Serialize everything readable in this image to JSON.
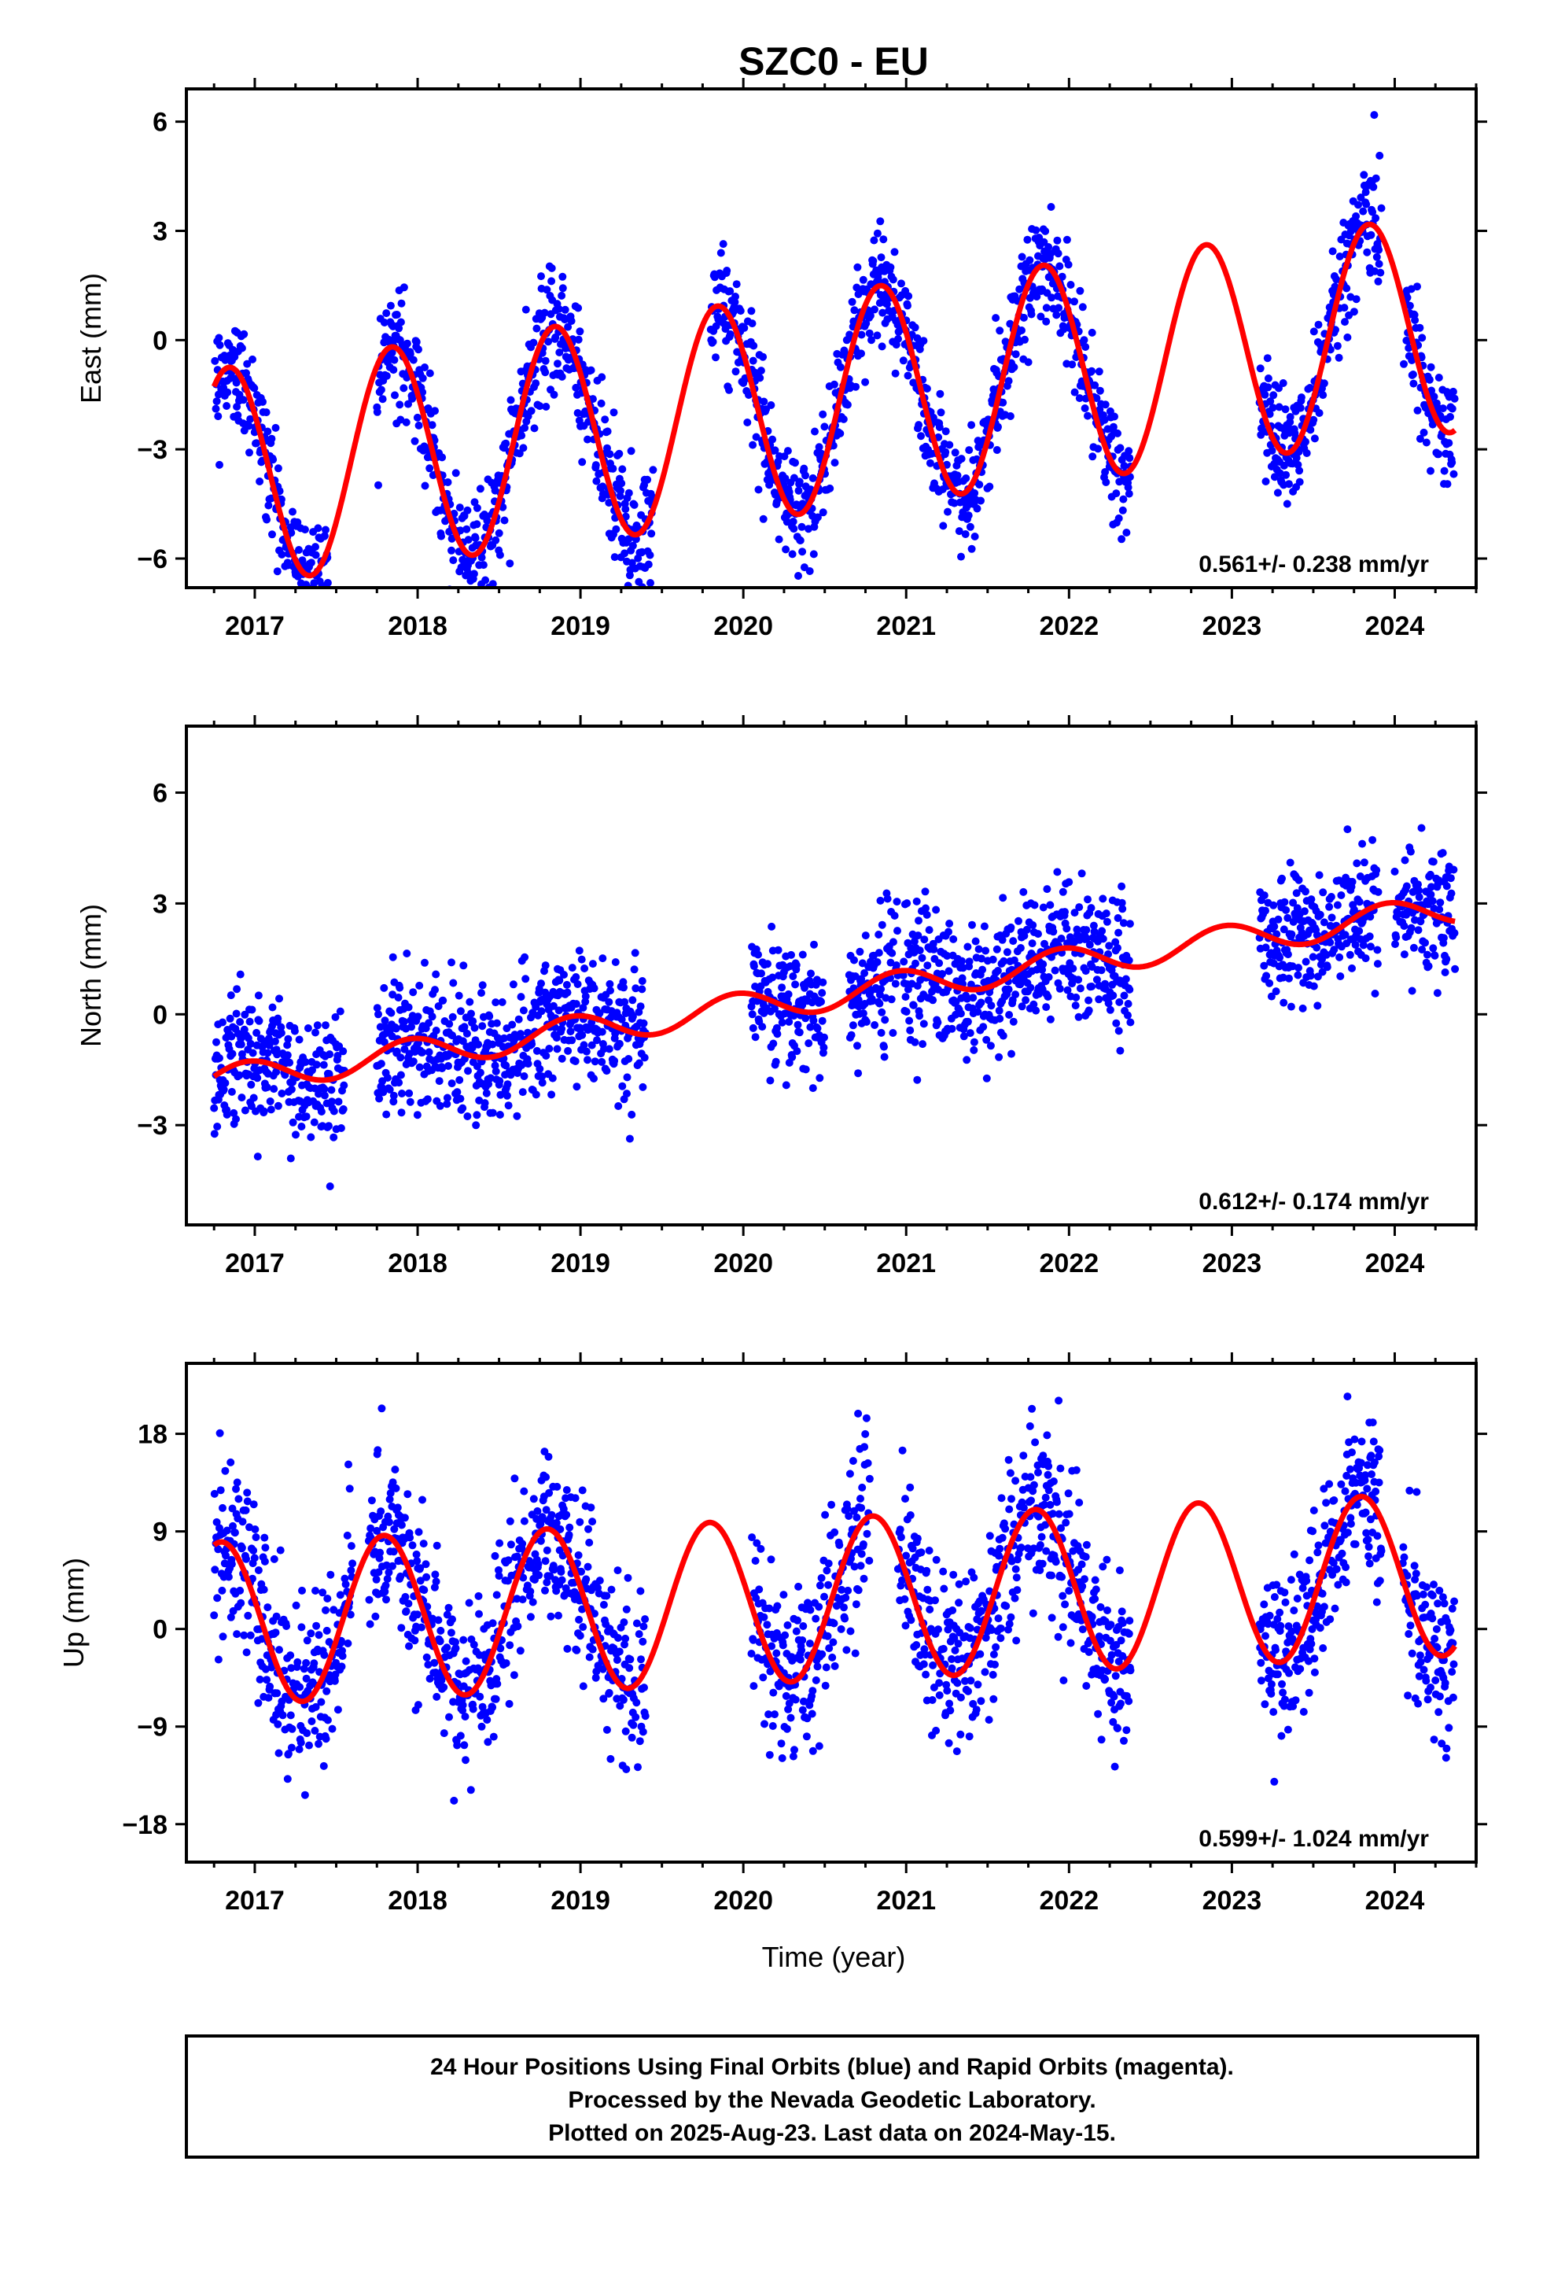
{
  "title": "SZC0 - EU",
  "xlabel": "Time (year)",
  "footer": {
    "line1": "24 Hour Positions Using Final Orbits (blue) and Rapid Orbits (magenta).",
    "line2": "Processed by the Nevada Geodetic Laboratory.",
    "line3": "Plotted on 2025-Aug-23. Last data on 2024-May-15."
  },
  "colors": {
    "observations": "#0000ff",
    "model_fit": "#ff0000",
    "axes": "#000000"
  },
  "chart_data": [
    {
      "type": "scatter",
      "panel": "east",
      "ylabel": "East (mm)",
      "rate": "0.561+/- 0.238 mm/yr",
      "xlim": [
        2016.58,
        2024.5
      ],
      "ylim": [
        -6.8,
        6.9
      ],
      "xticks": [
        2017,
        2018,
        2019,
        2020,
        2021,
        2022,
        2023,
        2024
      ],
      "yticks": [
        6,
        3,
        0,
        -3,
        -6
      ],
      "ytick_labels": [
        "6",
        "3",
        "0",
        "−3",
        "−6"
      ],
      "grid": false,
      "data_spans": [
        [
          2016.75,
          2017.45
        ],
        [
          2017.75,
          2019.45
        ],
        [
          2019.8,
          2021.55
        ],
        [
          2021.55,
          2022.38
        ],
        [
          2023.17,
          2023.92
        ],
        [
          2024.05,
          2024.37
        ]
      ],
      "series": [
        {
          "name": "Final Orbits (blue)",
          "style": "points",
          "model": {
            "t0": 2016.75,
            "y0": -3.8,
            "trend": 0.561,
            "amp": 3.0,
            "phase": 1.0,
            "noise": 0.8
          }
        },
        {
          "name": "model fit",
          "style": "line",
          "model": {
            "t0": 2016.75,
            "y0": -3.8,
            "trend": 0.561,
            "amp": 3.0,
            "phase": 1.0
          }
        }
      ]
    },
    {
      "type": "scatter",
      "panel": "north",
      "ylabel": "North (mm)",
      "rate": "0.612+/- 0.174 mm/yr",
      "xlim": [
        2016.58,
        2024.5
      ],
      "ylim": [
        -5.7,
        7.8
      ],
      "xticks": [
        2017,
        2018,
        2019,
        2020,
        2021,
        2022,
        2023,
        2024
      ],
      "yticks": [
        6,
        3,
        0,
        -3
      ],
      "ytick_labels": [
        "6",
        "3",
        "0",
        "−3"
      ],
      "grid": false,
      "data_spans": [
        [
          2016.75,
          2017.55
        ],
        [
          2017.75,
          2019.4
        ],
        [
          2020.05,
          2020.5
        ],
        [
          2020.65,
          2020.95
        ],
        [
          2020.98,
          2022.38
        ],
        [
          2023.17,
          2023.9
        ],
        [
          2024.0,
          2024.37
        ]
      ],
      "series": [
        {
          "name": "Final Orbits (blue)",
          "style": "points",
          "model": {
            "t0": 2016.75,
            "y0": -1.8,
            "trend": 0.612,
            "amp": 0.4,
            "phase": 0.3,
            "noise": 0.9
          }
        },
        {
          "name": "model fit",
          "style": "line",
          "model": {
            "t0": 2016.75,
            "y0": -1.8,
            "trend": 0.612,
            "amp": 0.4,
            "phase": 0.3
          }
        }
      ]
    },
    {
      "type": "scatter",
      "panel": "up",
      "ylabel": "Up (mm)",
      "rate": "0.599+/- 1.024 mm/yr",
      "xlim": [
        2016.58,
        2024.5
      ],
      "ylim": [
        -21.5,
        24.5
      ],
      "xticks": [
        2017,
        2018,
        2019,
        2020,
        2021,
        2022,
        2023,
        2024
      ],
      "yticks": [
        18,
        9,
        0,
        -9,
        -18
      ],
      "ytick_labels": [
        "18",
        "9",
        "0",
        "−9",
        "−18"
      ],
      "grid": false,
      "data_spans": [
        [
          2016.75,
          2017.6
        ],
        [
          2017.7,
          2019.4
        ],
        [
          2020.05,
          2020.78
        ],
        [
          2020.95,
          2022.38
        ],
        [
          2023.17,
          2023.92
        ],
        [
          2024.05,
          2024.37
        ]
      ],
      "series": [
        {
          "name": "Final Orbits (blue)",
          "style": "points",
          "model": {
            "t0": 2016.75,
            "y0": 0.5,
            "trend": 0.599,
            "amp": 7.5,
            "phase": 1.3,
            "noise": 4.0
          }
        },
        {
          "name": "model fit",
          "style": "line",
          "model": {
            "t0": 2016.75,
            "y0": 0.5,
            "trend": 0.599,
            "amp": 7.5,
            "phase": 1.3
          }
        }
      ]
    }
  ]
}
